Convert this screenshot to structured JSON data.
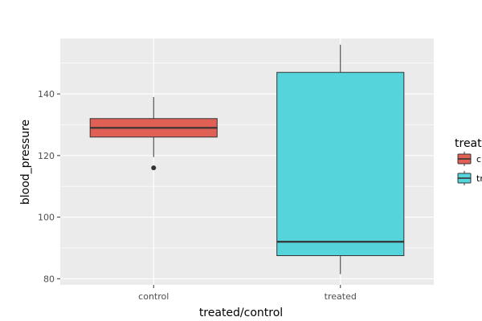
{
  "chart_data": {
    "type": "box",
    "xlabel": "treated/control",
    "ylabel": "blood_pressure",
    "ylim": [
      78,
      158
    ],
    "yticks": [
      80,
      100,
      120,
      140
    ],
    "grid": true,
    "legend_position": "right",
    "legend_title": "treat",
    "legend_labels": [
      "c",
      "tr"
    ],
    "categories": [
      "control",
      "treated"
    ],
    "boxes": [
      {
        "category": "control",
        "color": "#e06055",
        "whisker_low": 119.5,
        "q1": 126,
        "median": 129,
        "q3": 132,
        "whisker_high": 139,
        "outliers": [
          116
        ]
      },
      {
        "category": "treated",
        "color": "#55d4dc",
        "whisker_low": 81.5,
        "q1": 87.5,
        "median": 92,
        "q3": 147,
        "whisker_high": 156,
        "outliers": []
      }
    ]
  }
}
